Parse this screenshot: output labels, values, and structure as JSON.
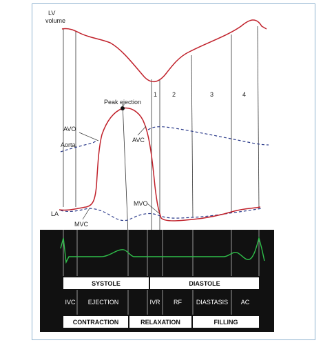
{
  "labels": {
    "lv_volume_1": "LV",
    "lv_volume_2": "volume",
    "aorta": "Aorta",
    "la": "LA",
    "peak_ejection": "Peak ejection",
    "avo": "AVO",
    "avc": "AVC",
    "mvo": "MVO",
    "mvc": "MVC",
    "phase_1": "1",
    "phase_2": "2",
    "phase_3": "3",
    "phase_4": "4"
  },
  "bars": {
    "systole": "SYSTOLE",
    "diastole": "DIASTOLE",
    "ivc": "IVC",
    "ejection": "EJECTION",
    "ivr": "IVR",
    "rf": "RF",
    "diastasis": "DIASTASIS",
    "ac": "AC",
    "contraction": "CONTRACTION",
    "relaxation": "RELAXATION",
    "filling": "FILLING"
  },
  "colors": {
    "pressure_curve": "#c0202a",
    "aorta_dashed": "#2a3a8a",
    "ecg": "#2fbf4a",
    "panel_bg": "#111111",
    "frame_border": "#8fb3cf"
  }
}
